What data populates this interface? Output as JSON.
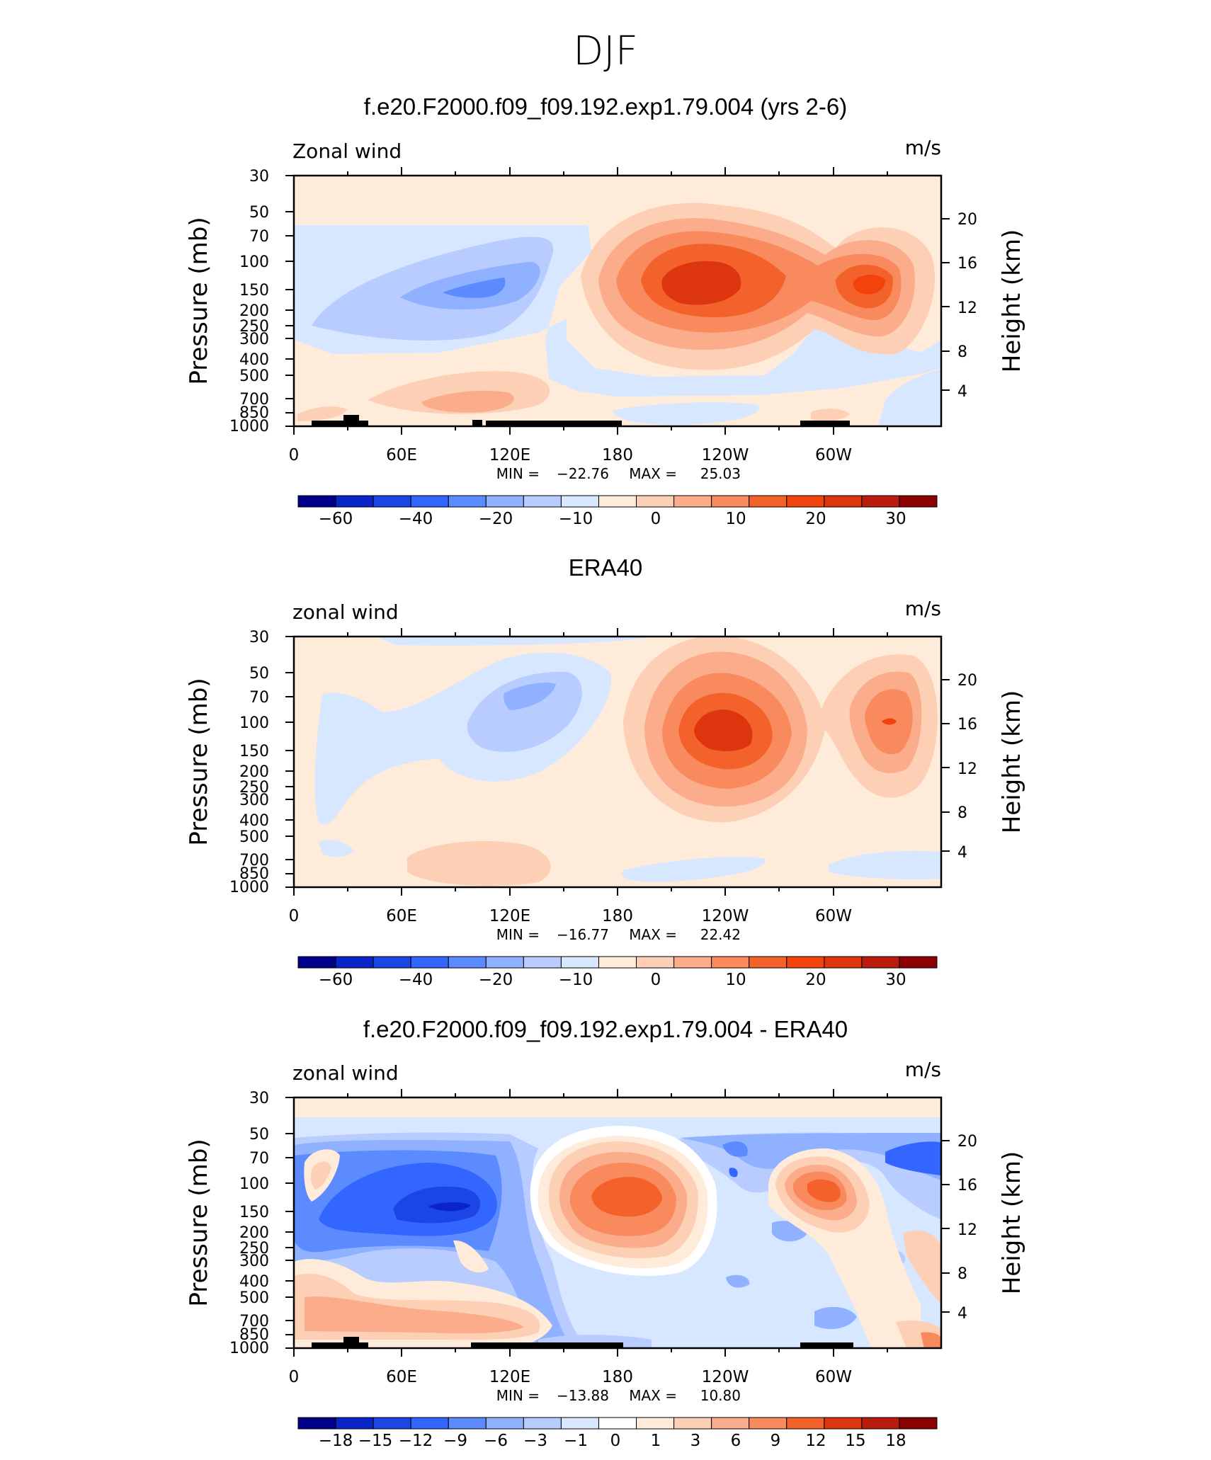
{
  "main_title": "DJF",
  "colors": {
    "model_full": [
      "#00008b",
      "#0a25c7",
      "#1c45e5",
      "#3366ff",
      "#5b8bff",
      "#8fb1ff",
      "#b8ccff",
      "#d7e7ff",
      "#feebd9",
      "#fdcfb4",
      "#fbac8b",
      "#f98a5d",
      "#f4622c",
      "#f2430d",
      "#dd350d",
      "#b91c0c",
      "#8b0000"
    ],
    "diff": [
      "#00008b",
      "#0a25c7",
      "#1c45e5",
      "#3366ff",
      "#5b8bff",
      "#8fb1ff",
      "#b8ccff",
      "#d7e7ff",
      "#ffffff",
      "#feebd9",
      "#fdcfb4",
      "#fbac8b",
      "#f98a5d",
      "#f4622c",
      "#dd350d",
      "#b91c0c",
      "#8b0000"
    ]
  },
  "panels": [
    {
      "title": "f.e20.F2000.f09_f09.192.exp1.79.004 (yrs 2-6)",
      "left_label": "Zonal wind",
      "units": "m/s",
      "y_axis_title": "Pressure (mb)",
      "y2_axis_title": "Height (km)",
      "stats_min_label": "MIN =",
      "stats_min": "−22.76",
      "stats_max_label": "MAX =",
      "stats_max": "25.03",
      "colorbar_labels": [
        "−60",
        "−40",
        "−20",
        "−10",
        "0",
        "10",
        "20",
        "30"
      ]
    },
    {
      "title": "ERA40",
      "left_label": "zonal wind",
      "units": "m/s",
      "y_axis_title": "Pressure (mb)",
      "y2_axis_title": "Height (km)",
      "stats_min_label": "MIN =",
      "stats_min": "−16.77",
      "stats_max_label": "MAX =",
      "stats_max": "22.42",
      "colorbar_labels": [
        "−60",
        "−40",
        "−20",
        "−10",
        "0",
        "10",
        "20",
        "30"
      ]
    },
    {
      "title": "f.e20.F2000.f09_f09.192.exp1.79.004 - ERA40",
      "left_label": "zonal wind",
      "units": "m/s",
      "y_axis_title": "Pressure (mb)",
      "y2_axis_title": "Height (km)",
      "stats_min_label": "MIN =",
      "stats_min": "−13.88",
      "stats_max_label": "MAX =",
      "stats_max": "10.80",
      "colorbar_labels": [
        "−18",
        "−15",
        "−12",
        "−9",
        "−6",
        "−3",
        "−1",
        "0",
        "1",
        "3",
        "6",
        "9",
        "12",
        "15",
        "18"
      ]
    }
  ],
  "chart_data": [
    {
      "type": "heatmap",
      "title": "f.e20.F2000.f09_f09.192.exp1.79.004 (yrs 2-6)",
      "variable": "Zonal wind",
      "units": "m/s",
      "xlabel": "",
      "ylabel": "Pressure (mb)",
      "y2label": "Height (km)",
      "x_ticks": [
        "0",
        "60E",
        "120E",
        "180",
        "120W",
        "60W"
      ],
      "y_ticks": [
        "30",
        "50",
        "70",
        "100",
        "150",
        "200",
        "250",
        "300",
        "400",
        "500",
        "700",
        "850",
        "1000"
      ],
      "y2_ticks": [
        "4",
        "8",
        "12",
        "16",
        "20"
      ],
      "ylim": [
        1000,
        30
      ],
      "y_scale": "log",
      "min": -22.76,
      "max": 25.03,
      "contour_levels": [
        -60,
        -50,
        -40,
        -30,
        -20,
        -15,
        -10,
        -5,
        0,
        5,
        10,
        15,
        20,
        25,
        30,
        35
      ]
    },
    {
      "type": "heatmap",
      "title": "ERA40",
      "variable": "zonal wind",
      "units": "m/s",
      "xlabel": "",
      "ylabel": "Pressure (mb)",
      "y2label": "Height (km)",
      "x_ticks": [
        "0",
        "60E",
        "120E",
        "180",
        "120W",
        "60W"
      ],
      "y_ticks": [
        "30",
        "50",
        "70",
        "100",
        "150",
        "200",
        "250",
        "300",
        "400",
        "500",
        "700",
        "850",
        "1000"
      ],
      "y2_ticks": [
        "4",
        "8",
        "12",
        "16",
        "20"
      ],
      "ylim": [
        1000,
        30
      ],
      "y_scale": "log",
      "min": -16.77,
      "max": 22.42,
      "contour_levels": [
        -60,
        -50,
        -40,
        -30,
        -20,
        -15,
        -10,
        -5,
        0,
        5,
        10,
        15,
        20,
        25,
        30,
        35
      ]
    },
    {
      "type": "heatmap",
      "title": "f.e20.F2000.f09_f09.192.exp1.79.004 - ERA40",
      "variable": "zonal wind",
      "units": "m/s",
      "xlabel": "",
      "ylabel": "Pressure (mb)",
      "y2label": "Height (km)",
      "x_ticks": [
        "0",
        "60E",
        "120E",
        "180",
        "120W",
        "60W"
      ],
      "y_ticks": [
        "30",
        "50",
        "70",
        "100",
        "150",
        "200",
        "250",
        "300",
        "400",
        "500",
        "700",
        "850",
        "1000"
      ],
      "y2_ticks": [
        "4",
        "8",
        "12",
        "16",
        "20"
      ],
      "ylim": [
        1000,
        30
      ],
      "y_scale": "log",
      "min": -13.88,
      "max": 10.8,
      "contour_levels": [
        -18,
        -15,
        -12,
        -9,
        -6,
        -3,
        -1,
        0,
        1,
        3,
        6,
        9,
        12,
        15,
        18
      ]
    }
  ]
}
